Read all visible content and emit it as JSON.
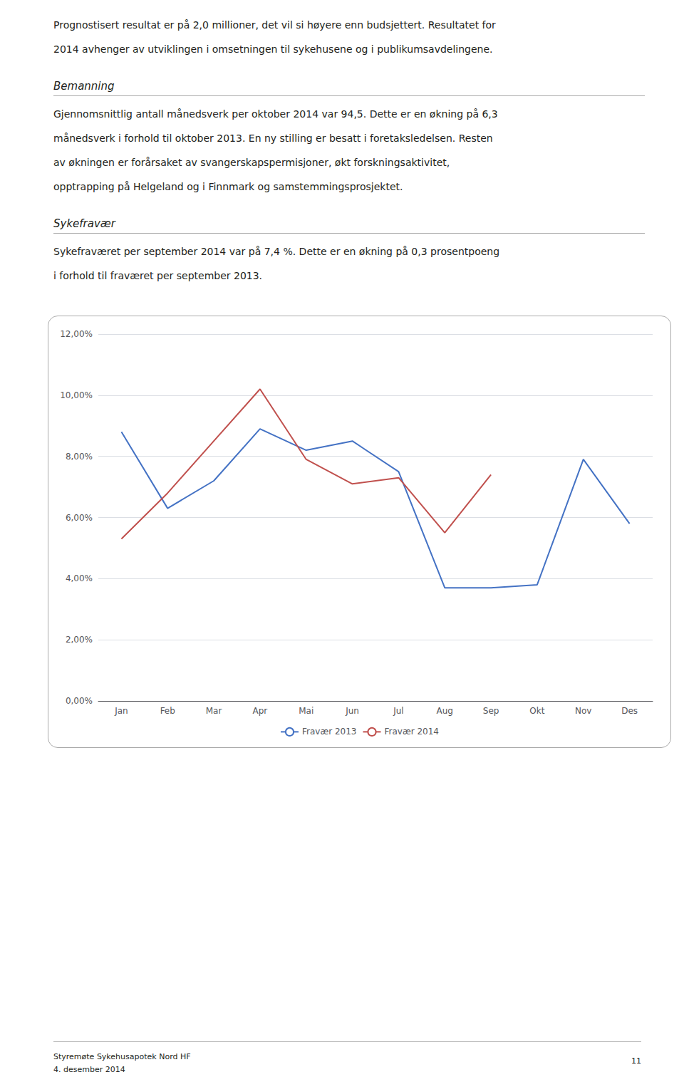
{
  "page": {
    "sections": [
      {
        "lines": [
          "Prognostisert resultat er på 2,0 millioner, det vil si høyere enn budsjettert. Resultatet for",
          "2014 avhenger av utviklingen i omsetningen til sykehusene og i publikumsavdelingene."
        ]
      },
      {
        "title": "Bemanning",
        "lines": [
          "Gjennomsnittlig antall månedsverk per oktober 2014 var 94,5. Dette er en økning på 6,3",
          "månedsverk i forhold til oktober 2013. En ny stilling er besatt i foretaksledelsen. Resten",
          "av økningen er forårsaket av svangerskapspermisjoner, økt forskningsaktivitet,",
          "opptrapping på Helgeland og i Finnmark og samstemmingsprosjektet."
        ]
      },
      {
        "title": "Sykefravær",
        "lines": [
          "Sykefraværet per september 2014 var på 7,4 %. Dette er en økning på 0,3 prosentpoeng",
          "i forhold til fraværet per september 2013."
        ]
      }
    ],
    "footer_left": [
      "Styremøte Sykehusapotek Nord HF",
      "4. desember 2014"
    ],
    "footer_right": "11"
  },
  "chart_data": {
    "type": "line",
    "categories": [
      "Jan",
      "Feb",
      "Mar",
      "Apr",
      "Mai",
      "Jun",
      "Jul",
      "Aug",
      "Sep",
      "Okt",
      "Nov",
      "Des"
    ],
    "series": [
      {
        "name": "Fravær 2013",
        "color": "#4472c4",
        "values": [
          8.8,
          6.3,
          7.2,
          8.9,
          8.2,
          8.5,
          7.5,
          3.7,
          3.7,
          3.8,
          7.9,
          5.8
        ]
      },
      {
        "name": "Fravær 2014",
        "color": "#c0504d",
        "values": [
          5.3,
          6.8,
          8.5,
          10.2,
          7.9,
          7.1,
          7.3,
          5.5,
          7.4,
          null,
          null,
          null
        ]
      }
    ],
    "ylim": [
      0,
      12
    ],
    "yticks": [
      {
        "value": 0,
        "label": "0,00%"
      },
      {
        "value": 2,
        "label": "2,00%"
      },
      {
        "value": 4,
        "label": "4,00%"
      },
      {
        "value": 6,
        "label": "6,00%"
      },
      {
        "value": 8,
        "label": "8,00%"
      },
      {
        "value": 10,
        "label": "10,00%"
      },
      {
        "value": 12,
        "label": "12,00%"
      }
    ],
    "grid": true,
    "legend": "bottom"
  }
}
